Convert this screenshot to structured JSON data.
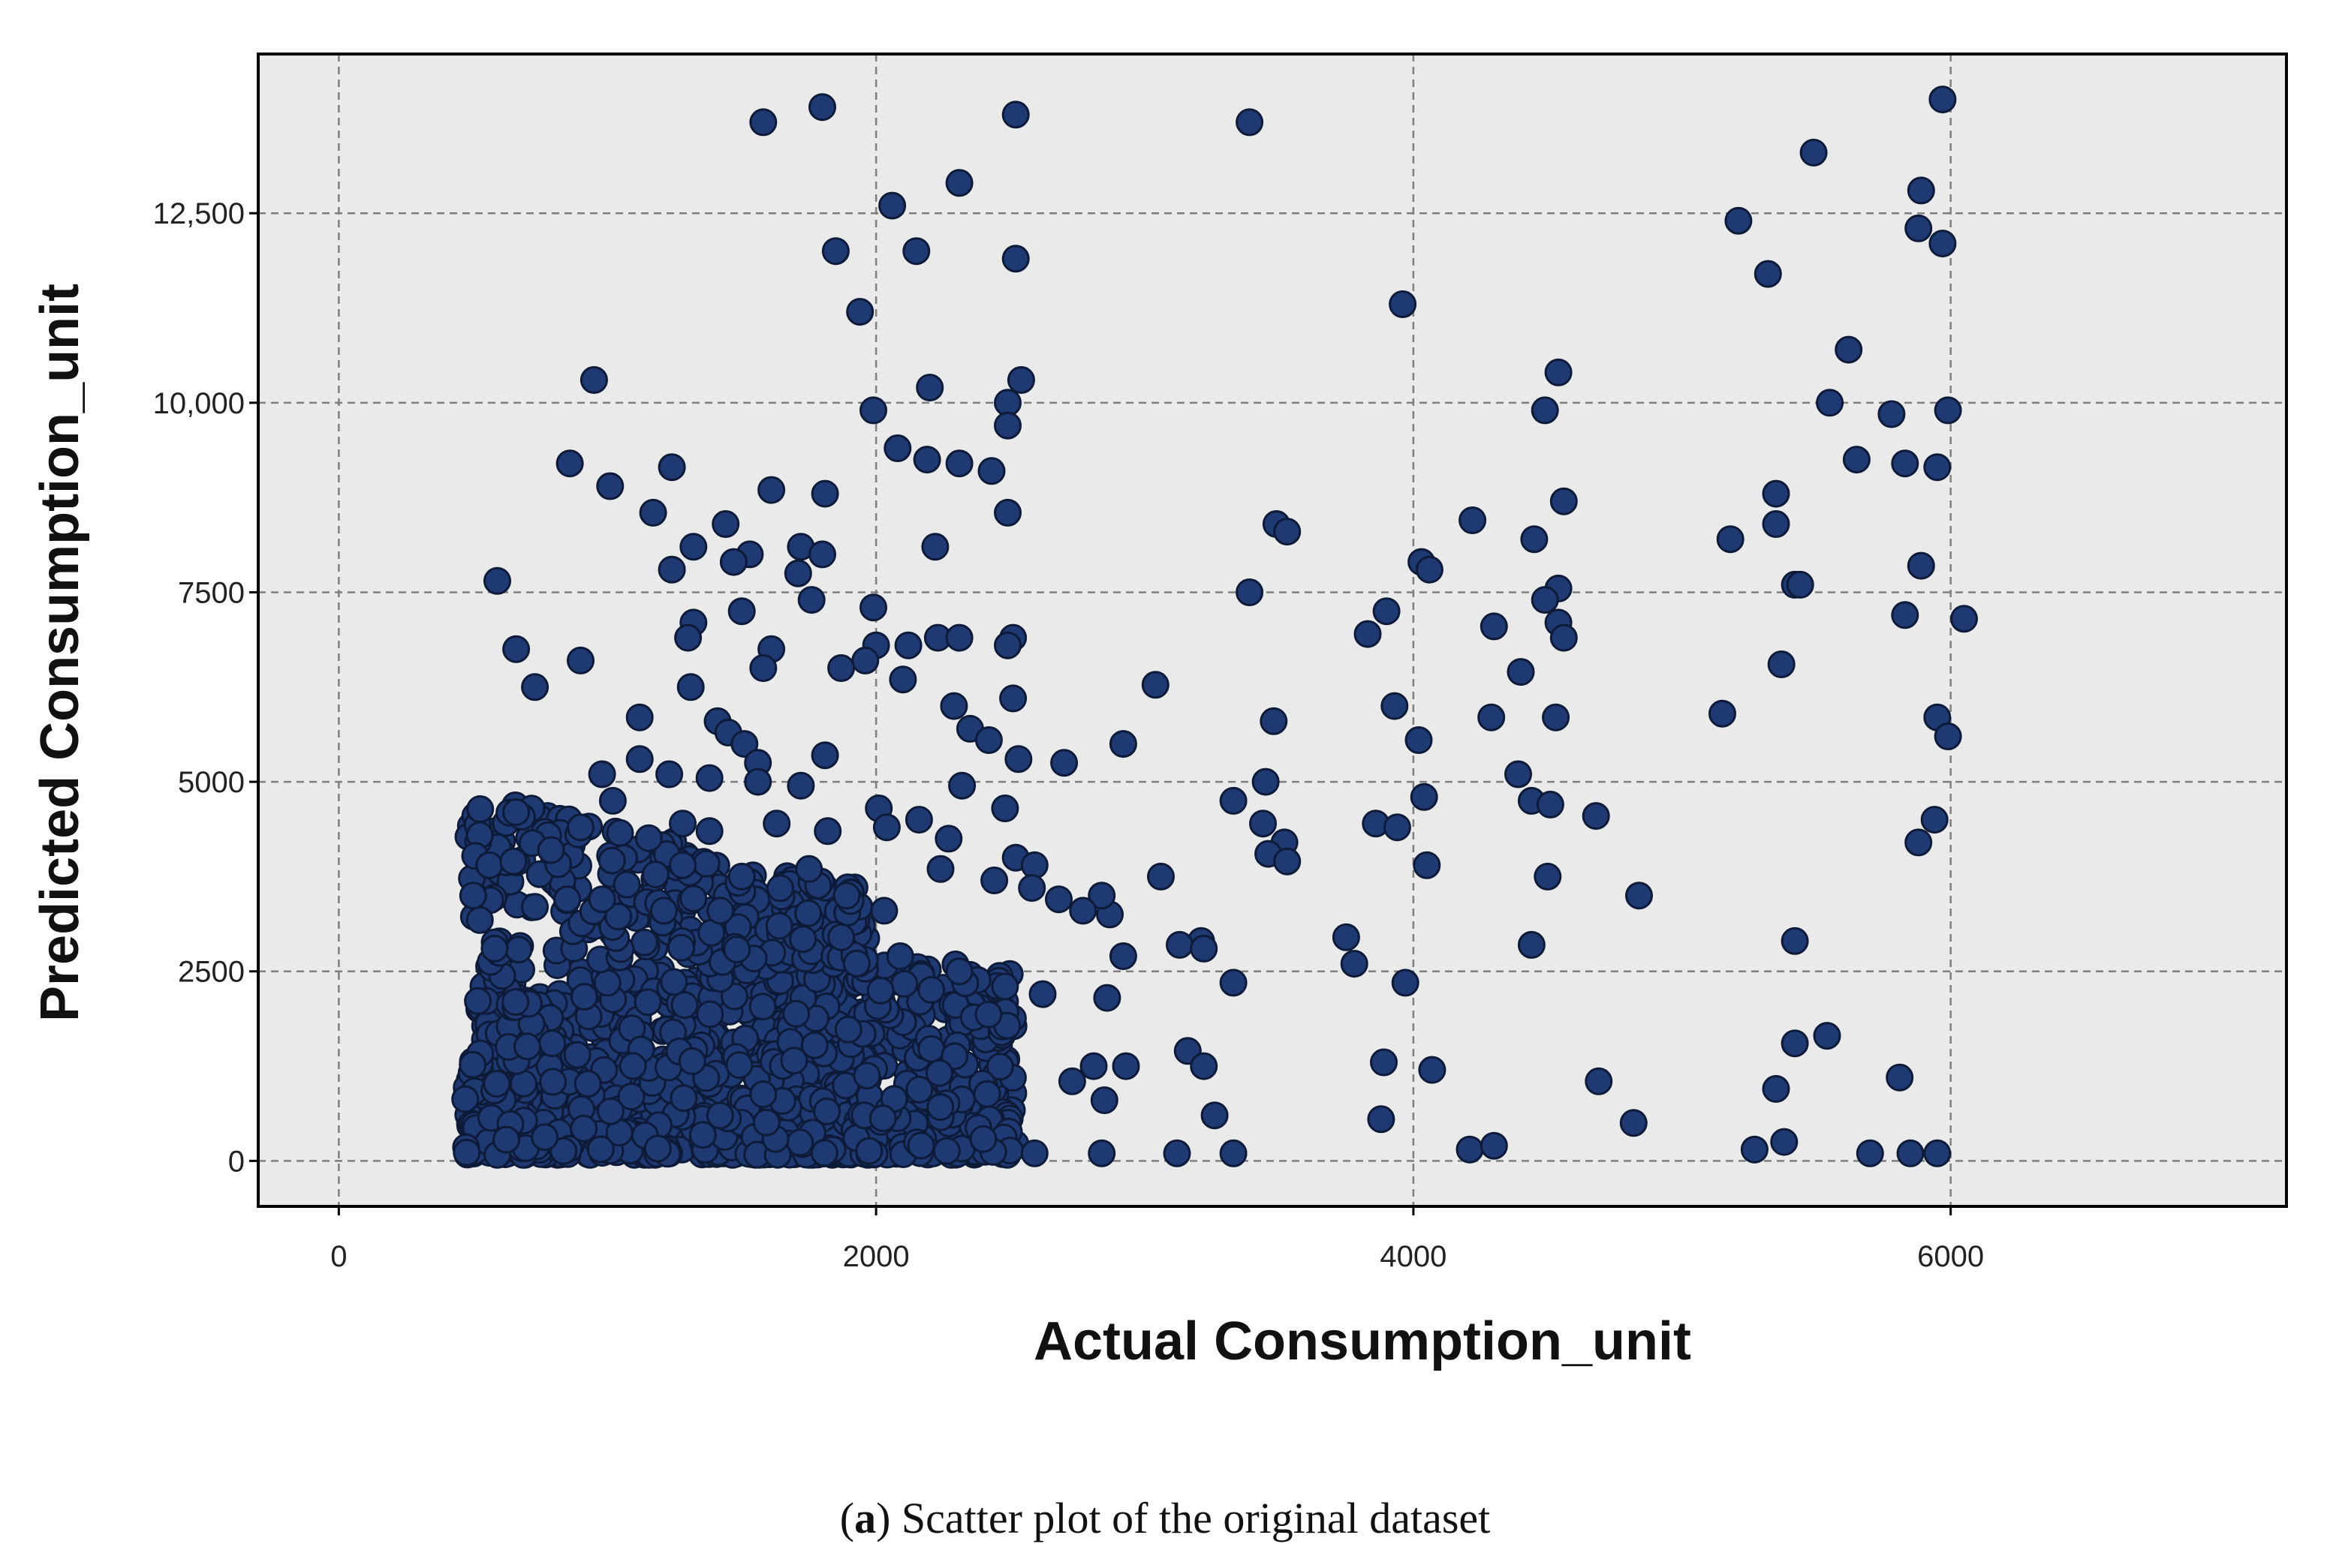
{
  "caption": {
    "label": "a",
    "text": "Scatter plot of the original dataset"
  },
  "colors": {
    "plot_background": "#eaeaea",
    "point_fill": "#1f3a72",
    "point_stroke": "#0d1a38",
    "grid": "#7f7f7f"
  },
  "chart_data": {
    "type": "scatter",
    "xlabel": "Actual Consumption_unit",
    "ylabel": "Predicted Consumption_unit",
    "xlim": [
      -300,
      7250
    ],
    "ylim": [
      -600,
      14600
    ],
    "x_ticks": [
      {
        "value": 0,
        "label": "0"
      },
      {
        "value": 2000,
        "label": "2000"
      },
      {
        "value": 4000,
        "label": "4000"
      },
      {
        "value": 6000,
        "label": "6000"
      }
    ],
    "y_ticks": [
      {
        "value": 0,
        "label": "0"
      },
      {
        "value": 2500,
        "label": "2500"
      },
      {
        "value": 5000,
        "label": "5000"
      },
      {
        "value": 7500,
        "label": "7500"
      },
      {
        "value": 10000,
        "label": "10,000"
      },
      {
        "value": 12500,
        "label": "12,500"
      }
    ],
    "grid": true,
    "legend": "none",
    "series": [
      {
        "values": [
          [
            1580,
            13700
          ],
          [
            1800,
            13900
          ],
          [
            2520,
            13800
          ],
          [
            3390,
            13700
          ],
          [
            5970,
            14000
          ],
          [
            5490,
            13300
          ],
          [
            2310,
            12900
          ],
          [
            2060,
            12600
          ],
          [
            5890,
            12800
          ],
          [
            5210,
            12400
          ],
          [
            2520,
            11900
          ],
          [
            1850,
            12000
          ],
          [
            2150,
            12000
          ],
          [
            5880,
            12300
          ],
          [
            5970,
            12100
          ],
          [
            5320,
            11700
          ],
          [
            1940,
            11200
          ],
          [
            3960,
            11300
          ],
          [
            950,
            10300
          ],
          [
            2200,
            10200
          ],
          [
            2540,
            10300
          ],
          [
            1990,
            9900
          ],
          [
            2490,
            10000
          ],
          [
            4540,
            10400
          ],
          [
            4490,
            9900
          ],
          [
            5620,
            10700
          ],
          [
            5550,
            10000
          ],
          [
            5780,
            9850
          ],
          [
            5990,
            9900
          ],
          [
            2490,
            9700
          ],
          [
            2080,
            9400
          ],
          [
            2190,
            9250
          ],
          [
            2310,
            9200
          ],
          [
            2430,
            9100
          ],
          [
            860,
            9200
          ],
          [
            1240,
            9150
          ],
          [
            1010,
            8900
          ],
          [
            1610,
            8850
          ],
          [
            1810,
            8800
          ],
          [
            2490,
            8550
          ],
          [
            1170,
            8550
          ],
          [
            5650,
            9250
          ],
          [
            5830,
            9200
          ],
          [
            5950,
            9150
          ],
          [
            4560,
            8700
          ],
          [
            5350,
            8800
          ],
          [
            3490,
            8400
          ],
          [
            3530,
            8300
          ],
          [
            4220,
            8450
          ],
          [
            5180,
            8200
          ],
          [
            5350,
            8400
          ],
          [
            4450,
            8200
          ],
          [
            1440,
            8400
          ],
          [
            1320,
            8100
          ],
          [
            1530,
            8000
          ],
          [
            1720,
            8100
          ],
          [
            1800,
            8000
          ],
          [
            1240,
            7800
          ],
          [
            1470,
            7900
          ],
          [
            1710,
            7750
          ],
          [
            2220,
            8100
          ],
          [
            590,
            7650
          ],
          [
            4030,
            7900
          ],
          [
            4060,
            7800
          ],
          [
            3390,
            7500
          ],
          [
            4540,
            7550
          ],
          [
            4490,
            7400
          ],
          [
            5420,
            7600
          ],
          [
            5440,
            7600
          ],
          [
            5890,
            7850
          ],
          [
            1760,
            7400
          ],
          [
            1990,
            7300
          ],
          [
            1500,
            7250
          ],
          [
            1320,
            7100
          ],
          [
            1300,
            6900
          ],
          [
            2000,
            6800
          ],
          [
            2120,
            6800
          ],
          [
            2230,
            6900
          ],
          [
            2310,
            6900
          ],
          [
            2510,
            6900
          ],
          [
            2490,
            6800
          ],
          [
            3900,
            7250
          ],
          [
            3830,
            6950
          ],
          [
            4300,
            7050
          ],
          [
            4540,
            7100
          ],
          [
            4560,
            6900
          ],
          [
            5830,
            7200
          ],
          [
            6050,
            7150
          ],
          [
            660,
            6750
          ],
          [
            900,
            6600
          ],
          [
            730,
            6250
          ],
          [
            1610,
            6750
          ],
          [
            1960,
            6600
          ],
          [
            1870,
            6500
          ],
          [
            1580,
            6500
          ],
          [
            2100,
            6350
          ],
          [
            1310,
            6250
          ],
          [
            2510,
            6100
          ],
          [
            2290,
            6000
          ],
          [
            3040,
            6280
          ],
          [
            3930,
            6000
          ],
          [
            4400,
            6450
          ],
          [
            5370,
            6550
          ],
          [
            1120,
            5850
          ],
          [
            1410,
            5800
          ],
          [
            1450,
            5650
          ],
          [
            1510,
            5500
          ],
          [
            2350,
            5700
          ],
          [
            2420,
            5550
          ],
          [
            2920,
            5500
          ],
          [
            3480,
            5800
          ],
          [
            4020,
            5550
          ],
          [
            4290,
            5850
          ],
          [
            4530,
            5850
          ],
          [
            5150,
            5900
          ],
          [
            5950,
            5850
          ],
          [
            5990,
            5600
          ],
          [
            2530,
            5300
          ],
          [
            2700,
            5250
          ],
          [
            1120,
            5300
          ],
          [
            1810,
            5350
          ],
          [
            1560,
            5250
          ],
          [
            1230,
            5100
          ],
          [
            980,
            5100
          ],
          [
            1380,
            5050
          ],
          [
            1560,
            5000
          ],
          [
            1720,
            4950
          ],
          [
            2010,
            4650
          ],
          [
            2160,
            4500
          ],
          [
            2480,
            4650
          ],
          [
            2320,
            4950
          ],
          [
            3330,
            4750
          ],
          [
            3450,
            5000
          ],
          [
            3440,
            4450
          ],
          [
            3520,
            4200
          ],
          [
            3460,
            4050
          ],
          [
            3530,
            3950
          ],
          [
            3860,
            4450
          ],
          [
            3940,
            4400
          ],
          [
            4040,
            4800
          ],
          [
            4050,
            3900
          ],
          [
            4390,
            5100
          ],
          [
            4440,
            4750
          ],
          [
            4510,
            4700
          ],
          [
            4680,
            4550
          ],
          [
            4500,
            3750
          ],
          [
            4840,
            3500
          ],
          [
            5940,
            4500
          ],
          [
            5880,
            4200
          ],
          [
            660,
            4600
          ],
          [
            1020,
            4750
          ],
          [
            900,
            4400
          ],
          [
            1280,
            4450
          ],
          [
            1380,
            4350
          ],
          [
            1630,
            4450
          ],
          [
            1820,
            4350
          ],
          [
            2040,
            4400
          ],
          [
            2270,
            4250
          ],
          [
            2520,
            4000
          ],
          [
            2590,
            3900
          ],
          [
            2870,
            3250
          ],
          [
            3060,
            3750
          ],
          [
            3210,
            2900
          ],
          [
            3130,
            2850
          ],
          [
            3750,
            2950
          ],
          [
            3780,
            2600
          ],
          [
            3970,
            2350
          ],
          [
            4440,
            2850
          ],
          [
            5420,
            2900
          ],
          [
            3330,
            2350
          ],
          [
            3220,
            2800
          ],
          [
            2920,
            2700
          ],
          [
            2860,
            2150
          ],
          [
            2840,
            3500
          ],
          [
            2770,
            3300
          ],
          [
            2680,
            3450
          ],
          [
            2580,
            3600
          ],
          [
            2440,
            3700
          ],
          [
            2240,
            3850
          ],
          [
            2030,
            3300
          ],
          [
            1750,
            3850
          ],
          [
            1500,
            3750
          ],
          [
            1280,
            3900
          ],
          [
            560,
            3900
          ],
          [
            650,
            3950
          ],
          [
            790,
            4100
          ],
          [
            730,
            3350
          ],
          [
            500,
            3500
          ],
          [
            580,
            2800
          ],
          [
            850,
            3450
          ],
          [
            980,
            3450
          ],
          [
            1210,
            3300
          ],
          [
            1420,
            3300
          ],
          [
            1640,
            3100
          ],
          [
            1870,
            2950
          ],
          [
            2090,
            2700
          ],
          [
            2310,
            2500
          ],
          [
            2480,
            2300
          ],
          [
            2620,
            2200
          ],
          [
            2810,
            1250
          ],
          [
            2730,
            1050
          ],
          [
            2850,
            800
          ],
          [
            2930,
            1250
          ],
          [
            3160,
            1450
          ],
          [
            3220,
            1250
          ],
          [
            3260,
            600
          ],
          [
            3880,
            550
          ],
          [
            3890,
            1300
          ],
          [
            4070,
            1200
          ],
          [
            4690,
            1050
          ],
          [
            4820,
            500
          ],
          [
            5350,
            950
          ],
          [
            5420,
            1550
          ],
          [
            5540,
            1650
          ],
          [
            5810,
            1100
          ],
          [
            4210,
            150
          ],
          [
            4300,
            200
          ],
          [
            5270,
            150
          ],
          [
            5380,
            250
          ],
          [
            5700,
            100
          ],
          [
            5850,
            100
          ],
          [
            5950,
            100
          ],
          [
            3120,
            100
          ],
          [
            3330,
            100
          ],
          [
            2840,
            100
          ],
          [
            2590,
            100
          ]
        ]
      }
    ],
    "dense_cluster": {
      "x_range": [
        470,
        2520
      ],
      "y_range": [
        80,
        2600
      ]
    }
  }
}
